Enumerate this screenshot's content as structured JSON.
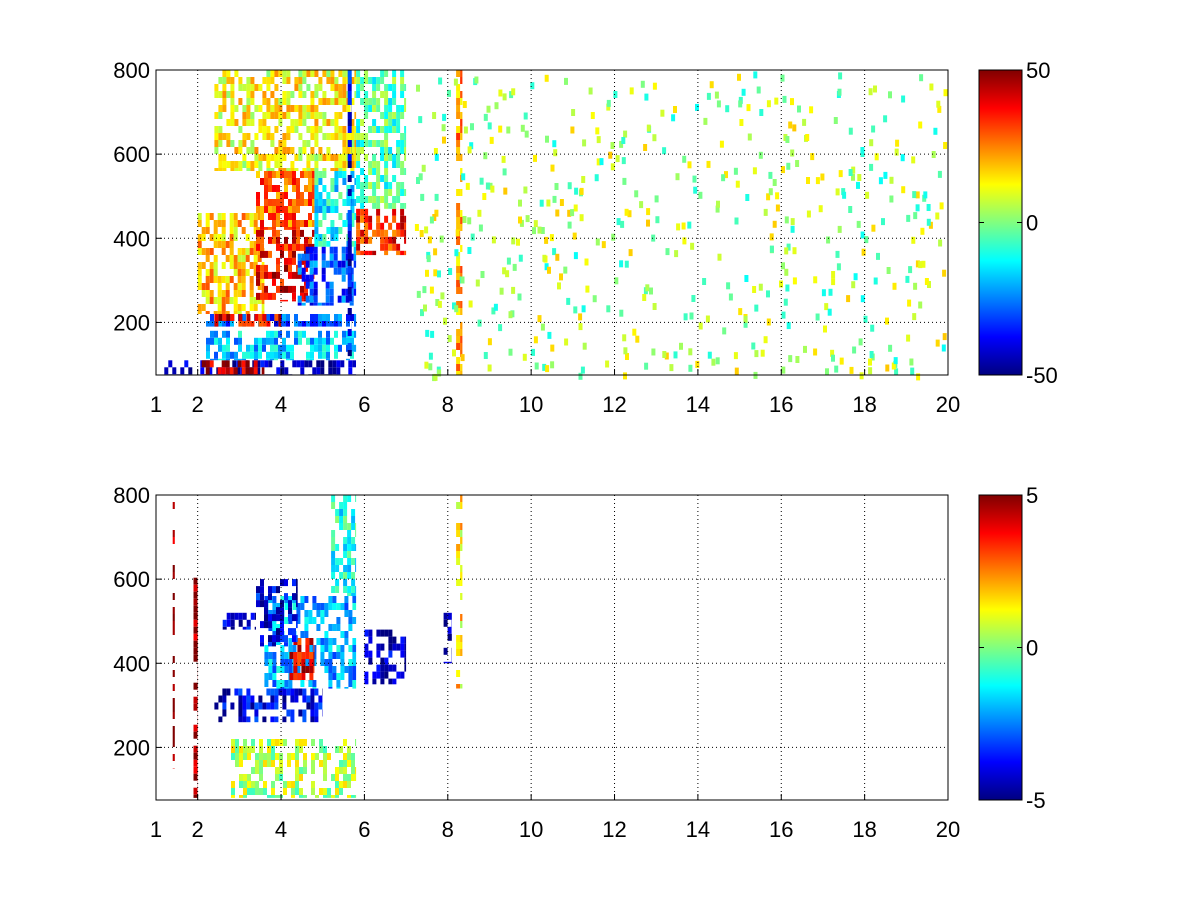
{
  "chart_data": [
    {
      "type": "heatmap",
      "title": "",
      "xlabel": "",
      "ylabel": "",
      "xlim": [
        1,
        20
      ],
      "ylim": [
        75,
        800
      ],
      "x_ticks": [
        1,
        2,
        4,
        6,
        8,
        10,
        12,
        14,
        16,
        18,
        20
      ],
      "y_ticks": [
        200,
        400,
        600,
        800
      ],
      "grid": true,
      "colormap": "jet",
      "clim": [
        -50,
        50
      ],
      "colorbar_ticks": [
        50,
        0,
        -50
      ],
      "regions": [
        {
          "x": [
            1.2,
            5.8
          ],
          "y": [
            75,
            110
          ],
          "value": -45
        },
        {
          "x": [
            2.0,
            3.6
          ],
          "y": [
            75,
            110
          ],
          "value": 45
        },
        {
          "x": [
            2.2,
            5.8
          ],
          "y": [
            110,
            180
          ],
          "value": -18
        },
        {
          "x": [
            2.2,
            5.8
          ],
          "y": [
            190,
            220
          ],
          "value": -30
        },
        {
          "x": [
            2.4,
            4.0
          ],
          "y": [
            190,
            220
          ],
          "value": 40
        },
        {
          "x": [
            2.0,
            3.6
          ],
          "y": [
            220,
            460
          ],
          "value": 18
        },
        {
          "x": [
            3.4,
            4.8
          ],
          "y": [
            250,
            420
          ],
          "value": 38
        },
        {
          "x": [
            4.4,
            5.8
          ],
          "y": [
            240,
            380
          ],
          "value": -30
        },
        {
          "x": [
            4.8,
            5.8
          ],
          "y": [
            380,
            560
          ],
          "value": -12
        },
        {
          "x": [
            3.4,
            4.8
          ],
          "y": [
            420,
            560
          ],
          "value": 28
        },
        {
          "x": [
            2.4,
            5.8
          ],
          "y": [
            560,
            800
          ],
          "value": 12
        },
        {
          "x": [
            5.6,
            5.7
          ],
          "y": [
            120,
            800
          ],
          "value": -40
        },
        {
          "x": [
            5.8,
            7.0
          ],
          "y": [
            360,
            470
          ],
          "value": 35
        },
        {
          "x": [
            5.8,
            7.0
          ],
          "y": [
            470,
            800
          ],
          "value": -5
        },
        {
          "x": [
            8.2,
            8.35
          ],
          "y": [
            75,
            800
          ],
          "value": 22
        }
      ]
    },
    {
      "type": "heatmap",
      "title": "",
      "xlabel": "",
      "ylabel": "",
      "xlim": [
        1,
        20
      ],
      "ylim": [
        75,
        800
      ],
      "x_ticks": [
        1,
        2,
        4,
        6,
        8,
        10,
        12,
        14,
        16,
        18,
        20
      ],
      "y_ticks": [
        200,
        400,
        600,
        800
      ],
      "grid": true,
      "colormap": "jet",
      "clim": [
        -5,
        5
      ],
      "colorbar_ticks": [
        5,
        0,
        -5
      ],
      "regions": [
        {
          "x": [
            1.4,
            1.45
          ],
          "y": [
            150,
            800
          ],
          "value": 5
        },
        {
          "x": [
            1.9,
            2.0
          ],
          "y": [
            80,
            620
          ],
          "value": 5
        },
        {
          "x": [
            2.8,
            5.8
          ],
          "y": [
            80,
            220
          ],
          "value": 0.5
        },
        {
          "x": [
            2.4,
            5.0
          ],
          "y": [
            260,
            340
          ],
          "value": -4
        },
        {
          "x": [
            3.6,
            5.8
          ],
          "y": [
            340,
            560
          ],
          "value": -2
        },
        {
          "x": [
            4.2,
            4.8
          ],
          "y": [
            360,
            460
          ],
          "value": 4
        },
        {
          "x": [
            3.4,
            4.4
          ],
          "y": [
            440,
            600
          ],
          "value": -4
        },
        {
          "x": [
            2.6,
            3.4
          ],
          "y": [
            480,
            520
          ],
          "value": -4
        },
        {
          "x": [
            5.2,
            5.8
          ],
          "y": [
            560,
            800
          ],
          "value": -1
        },
        {
          "x": [
            6.0,
            7.0
          ],
          "y": [
            350,
            480
          ],
          "value": -4.5
        },
        {
          "x": [
            7.9,
            8.1
          ],
          "y": [
            400,
            520
          ],
          "value": -4.5
        },
        {
          "x": [
            8.2,
            8.35
          ],
          "y": [
            340,
            800
          ],
          "value": 1.5
        }
      ]
    }
  ]
}
